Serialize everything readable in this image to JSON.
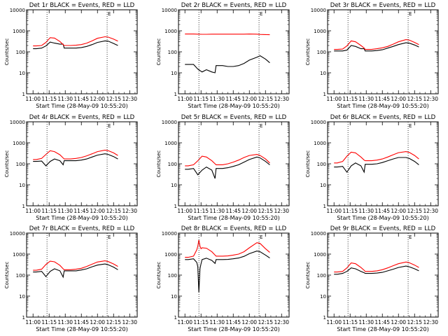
{
  "colors": {
    "events": "#000000",
    "lld": "#ff0000",
    "axes": "#000000",
    "background": "#ffffff"
  },
  "chart_data": [
    {
      "type": "line",
      "title": "Det 1r BLACK = Events, RED = LLD",
      "xlabel": "Start Time (28-May-09 10:55:20)",
      "ylabel": "Counts/sec",
      "xticks": [
        "11:00",
        "11:15",
        "11:30",
        "11:45",
        "12:00",
        "12:15",
        "12:30"
      ],
      "yticks": [
        "1",
        "10",
        "100",
        "1000",
        "10000"
      ],
      "yscale": "log",
      "ylim": [
        1,
        10000
      ],
      "x_minutes": [
        0,
        3,
        8,
        12,
        16,
        20,
        25,
        28,
        29,
        35,
        40,
        45,
        50,
        55,
        60,
        67,
        70,
        75,
        79
      ],
      "vlines_minutes": [
        13,
        69
      ],
      "marker": "E",
      "series": [
        {
          "values": [
            140,
            140,
            150,
            190,
            290,
            260,
            230,
            230,
            150,
            150,
            150,
            160,
            180,
            220,
            280,
            330,
            320,
            250,
            200
          ]
        },
        {
          "values": [
            190,
            190,
            200,
            280,
            470,
            450,
            310,
            220,
            200,
            200,
            205,
            220,
            260,
            330,
            440,
            520,
            500,
            400,
            320
          ]
        }
      ]
    },
    {
      "type": "line",
      "title": "Det 2r BLACK = Events, RED = LLD",
      "xlabel": "Start Time (28-May-09 10:55:20)",
      "ylabel": "Counts/sec",
      "xticks": [
        "11:00",
        "11:15",
        "11:30",
        "11:45",
        "12:00",
        "12:15",
        "12:30"
      ],
      "yticks": [
        "1",
        "10",
        "100",
        "1000",
        "10000"
      ],
      "yscale": "log",
      "ylim": [
        1,
        10000
      ],
      "x_minutes": [
        0,
        3,
        8,
        12,
        16,
        20,
        25,
        28,
        29,
        35,
        40,
        45,
        50,
        55,
        60,
        67,
        70,
        75,
        79
      ],
      "vlines_minutes": [
        13,
        69
      ],
      "marker": "E",
      "series": [
        {
          "values": [
            25,
            25,
            25,
            15,
            11,
            14,
            11,
            10,
            22,
            22,
            20,
            20,
            22,
            28,
            40,
            55,
            65,
            45,
            30
          ]
        },
        {
          "values": [
            700,
            700,
            700,
            690,
            680,
            680,
            690,
            690,
            690,
            690,
            690,
            690,
            690,
            690,
            700,
            690,
            670,
            660,
            650
          ]
        }
      ]
    },
    {
      "type": "line",
      "title": "Det 3r BLACK = Events, RED = LLD",
      "xlabel": "Start Time (28-May-09 10:55:20)",
      "ylabel": "Counts/sec",
      "xticks": [
        "11:00",
        "11:15",
        "11:30",
        "11:45",
        "12:00",
        "12:15",
        "12:30"
      ],
      "yticks": [
        "1",
        "10",
        "100",
        "1000",
        "10000"
      ],
      "yscale": "log",
      "ylim": [
        1,
        10000
      ],
      "x_minutes": [
        0,
        3,
        8,
        12,
        16,
        20,
        25,
        28,
        29,
        35,
        40,
        45,
        50,
        55,
        60,
        67,
        70,
        75,
        79
      ],
      "vlines_minutes": [
        13,
        69
      ],
      "marker": "E",
      "series": [
        {
          "values": [
            110,
            110,
            110,
            120,
            200,
            180,
            140,
            140,
            110,
            110,
            115,
            125,
            150,
            180,
            220,
            270,
            260,
            210,
            170
          ]
        },
        {
          "values": [
            130,
            130,
            135,
            190,
            330,
            300,
            200,
            150,
            130,
            130,
            140,
            155,
            180,
            230,
            300,
            380,
            360,
            280,
            220
          ]
        }
      ]
    },
    {
      "type": "line",
      "title": "Det 4r BLACK = Events, RED = LLD",
      "xlabel": "Start Time (28-May-09 10:55:20)",
      "ylabel": "Counts/sec",
      "xticks": [
        "11:00",
        "11:15",
        "11:30",
        "11:45",
        "12:00",
        "12:15",
        "12:30"
      ],
      "yticks": [
        "1",
        "10",
        "100",
        "1000",
        "10000"
      ],
      "yscale": "log",
      "ylim": [
        1,
        10000
      ],
      "x_minutes": [
        0,
        3,
        8,
        12,
        16,
        20,
        25,
        28,
        29,
        35,
        40,
        45,
        50,
        55,
        60,
        67,
        70,
        75,
        79
      ],
      "vlines_minutes": [
        13,
        69
      ],
      "marker": "E",
      "series": [
        {
          "values": [
            130,
            130,
            135,
            80,
            130,
            170,
            140,
            90,
            140,
            140,
            140,
            150,
            170,
            210,
            260,
            300,
            280,
            220,
            170
          ]
        },
        {
          "values": [
            160,
            160,
            180,
            280,
            420,
            380,
            270,
            190,
            170,
            170,
            180,
            200,
            240,
            300,
            380,
            450,
            420,
            330,
            250
          ]
        }
      ]
    },
    {
      "type": "line",
      "title": "Det 5r BLACK = Events, RED = LLD",
      "xlabel": "Start Time (28-May-09 10:55:20)",
      "ylabel": "Counts/sec",
      "xticks": [
        "11:00",
        "11:15",
        "11:30",
        "11:45",
        "12:00",
        "12:15",
        "12:30"
      ],
      "yticks": [
        "1",
        "10",
        "100",
        "1000",
        "10000"
      ],
      "yscale": "log",
      "ylim": [
        1,
        10000
      ],
      "x_minutes": [
        0,
        3,
        8,
        12,
        16,
        20,
        25,
        28,
        29,
        35,
        40,
        45,
        50,
        55,
        60,
        67,
        70,
        75,
        79
      ],
      "vlines_minutes": [
        13,
        69
      ],
      "marker": "E",
      "series": [
        {
          "values": [
            55,
            55,
            60,
            30,
            50,
            70,
            50,
            20,
            60,
            60,
            65,
            75,
            90,
            120,
            160,
            210,
            190,
            130,
            90
          ]
        },
        {
          "values": [
            80,
            80,
            90,
            140,
            230,
            210,
            140,
            100,
            90,
            90,
            100,
            120,
            150,
            200,
            250,
            280,
            250,
            170,
            110
          ]
        }
      ]
    },
    {
      "type": "line",
      "title": "Det 6r BLACK = Events, RED = LLD",
      "xlabel": "Start Time (28-May-09 10:55:20)",
      "ylabel": "Counts/sec",
      "xticks": [
        "11:00",
        "11:15",
        "11:30",
        "11:45",
        "12:00",
        "12:15",
        "12:30"
      ],
      "yticks": [
        "1",
        "10",
        "100",
        "1000",
        "10000"
      ],
      "yscale": "log",
      "ylim": [
        1,
        10000
      ],
      "x_minutes": [
        0,
        3,
        8,
        12,
        16,
        20,
        25,
        28,
        29,
        35,
        40,
        45,
        50,
        55,
        60,
        67,
        70,
        75,
        79
      ],
      "vlines_minutes": [
        13,
        69
      ],
      "marker": "E",
      "series": [
        {
          "values": [
            70,
            70,
            75,
            40,
            80,
            110,
            80,
            40,
            95,
            95,
            100,
            115,
            140,
            170,
            200,
            200,
            180,
            130,
            90
          ]
        },
        {
          "values": [
            110,
            110,
            130,
            230,
            360,
            330,
            210,
            150,
            140,
            140,
            150,
            170,
            210,
            270,
            340,
            380,
            350,
            250,
            170
          ]
        }
      ]
    },
    {
      "type": "line",
      "title": "Det 7r BLACK = Events, RED = LLD",
      "xlabel": "Start Time (28-May-09 10:55:20)",
      "ylabel": "Counts/sec",
      "xticks": [
        "11:00",
        "11:15",
        "11:30",
        "11:45",
        "12:00",
        "12:15",
        "12:30"
      ],
      "yticks": [
        "1",
        "10",
        "100",
        "1000",
        "10000"
      ],
      "yscale": "log",
      "ylim": [
        1,
        10000
      ],
      "x_minutes": [
        0,
        3,
        8,
        12,
        16,
        20,
        25,
        28,
        29,
        35,
        40,
        45,
        50,
        55,
        60,
        67,
        70,
        75,
        79
      ],
      "vlines_minutes": [
        13,
        69
      ],
      "marker": "E",
      "series": [
        {
          "values": [
            140,
            140,
            150,
            85,
            150,
            200,
            160,
            80,
            160,
            160,
            160,
            175,
            200,
            250,
            300,
            340,
            310,
            240,
            180
          ]
        },
        {
          "values": [
            170,
            170,
            190,
            320,
            460,
            430,
            290,
            200,
            180,
            180,
            190,
            210,
            260,
            330,
            420,
            480,
            440,
            340,
            260
          ]
        }
      ]
    },
    {
      "type": "line",
      "title": "Det 8r BLACK = Events, RED = LLD",
      "xlabel": "Start Time (28-May-09 10:55:20)",
      "ylabel": "Counts/sec",
      "xticks": [
        "11:00",
        "11:15",
        "11:30",
        "11:45",
        "12:00",
        "12:15",
        "12:30"
      ],
      "yticks": [
        "1",
        "10",
        "100",
        "1000",
        "10000"
      ],
      "yscale": "log",
      "ylim": [
        1,
        10000
      ],
      "x_minutes": [
        0,
        3,
        8,
        11,
        12,
        13,
        14,
        15,
        16,
        20,
        25,
        28,
        29,
        35,
        40,
        45,
        50,
        55,
        60,
        67,
        70,
        75,
        79
      ],
      "vlines_minutes": [
        13,
        69
      ],
      "marker": "E",
      "series": [
        {
          "values": [
            550,
            550,
            600,
            400,
            250,
            15,
            200,
            350,
            550,
            640,
            500,
            360,
            550,
            550,
            560,
            600,
            650,
            780,
            1050,
            1400,
            1300,
            900,
            650
          ]
        },
        {
          "values": [
            700,
            700,
            800,
            1600,
            2400,
            4700,
            2400,
            1800,
            2000,
            1900,
            1300,
            900,
            800,
            800,
            820,
            900,
            1000,
            1300,
            2000,
            3500,
            3200,
            1800,
            1200
          ]
        }
      ]
    },
    {
      "type": "line",
      "title": "Det 9r BLACK = Events, RED = LLD",
      "xlabel": "Start Time (28-May-09 10:55:20)",
      "ylabel": "Counts/sec",
      "xticks": [
        "11:00",
        "11:15",
        "11:30",
        "11:45",
        "12:00",
        "12:15",
        "12:30"
      ],
      "yticks": [
        "1",
        "10",
        "100",
        "1000",
        "10000"
      ],
      "yscale": "log",
      "ylim": [
        1,
        10000
      ],
      "x_minutes": [
        0,
        3,
        8,
        12,
        16,
        20,
        25,
        28,
        29,
        35,
        40,
        45,
        50,
        55,
        60,
        67,
        70,
        75,
        79
      ],
      "vlines_minutes": [
        13,
        69
      ],
      "marker": "E",
      "series": [
        {
          "values": [
            110,
            110,
            120,
            150,
            220,
            200,
            150,
            130,
            120,
            120,
            125,
            135,
            160,
            190,
            230,
            270,
            250,
            200,
            160
          ]
        },
        {
          "values": [
            140,
            140,
            150,
            220,
            380,
            350,
            230,
            170,
            150,
            150,
            160,
            180,
            220,
            280,
            350,
            420,
            390,
            300,
            230
          ]
        }
      ]
    }
  ]
}
